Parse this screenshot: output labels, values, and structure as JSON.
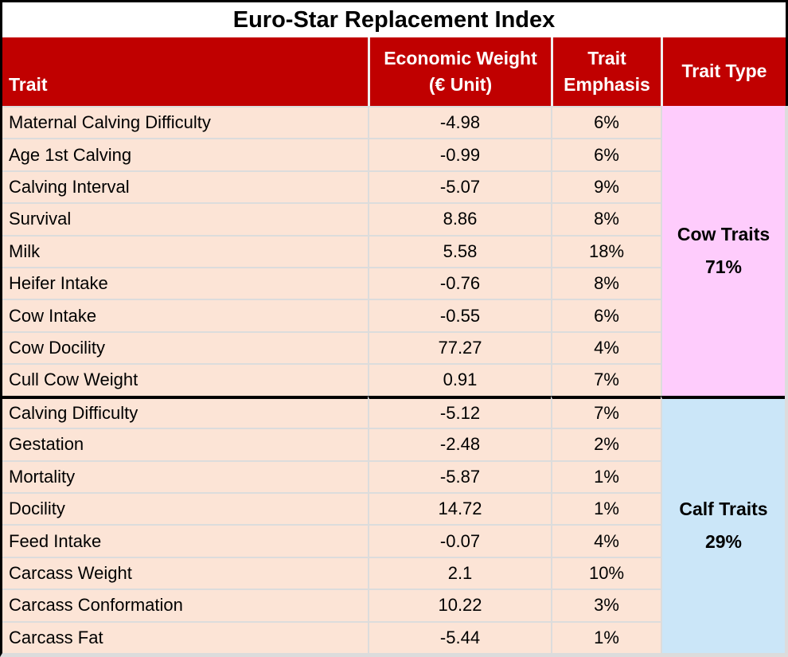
{
  "title": "Euro-Star Replacement Index",
  "header": {
    "trait": "Trait",
    "weight_line1": "Economic Weight",
    "weight_line2": "(€ Unit)",
    "emphasis_line1": "Trait",
    "emphasis_line2": "Emphasis",
    "type": "Trait Type"
  },
  "chart_data": {
    "type": "table",
    "title": "Euro-Star Replacement Index",
    "columns": [
      "Trait",
      "Economic Weight (€ Unit)",
      "Trait Emphasis",
      "Trait Type"
    ],
    "rows": [
      {
        "trait": "Maternal Calving Difficulty",
        "weight": "-4.98",
        "emphasis": "6%",
        "group": "Cow Traits"
      },
      {
        "trait": "Age 1st Calving",
        "weight": "-0.99",
        "emphasis": "6%",
        "group": "Cow Traits"
      },
      {
        "trait": "Calving Interval",
        "weight": "-5.07",
        "emphasis": "9%",
        "group": "Cow Traits"
      },
      {
        "trait": "Survival",
        "weight": "8.86",
        "emphasis": "8%",
        "group": "Cow Traits"
      },
      {
        "trait": "Milk",
        "weight": "5.58",
        "emphasis": "18%",
        "group": "Cow Traits"
      },
      {
        "trait": "Heifer Intake",
        "weight": "-0.76",
        "emphasis": "8%",
        "group": "Cow Traits"
      },
      {
        "trait": "Cow Intake",
        "weight": "-0.55",
        "emphasis": "6%",
        "group": "Cow Traits"
      },
      {
        "trait": "Cow Docility",
        "weight": "77.27",
        "emphasis": "4%",
        "group": "Cow Traits"
      },
      {
        "trait": "Cull Cow Weight",
        "weight": "0.91",
        "emphasis": "7%",
        "group": "Cow Traits"
      },
      {
        "trait": "Calving Difficulty",
        "weight": "-5.12",
        "emphasis": "7%",
        "group": "Calf Traits"
      },
      {
        "trait": "Gestation",
        "weight": "-2.48",
        "emphasis": "2%",
        "group": "Calf Traits"
      },
      {
        "trait": "Mortality",
        "weight": "-5.87",
        "emphasis": "1%",
        "group": "Calf Traits"
      },
      {
        "trait": "Docility",
        "weight": "14.72",
        "emphasis": "1%",
        "group": "Calf Traits"
      },
      {
        "trait": "Feed Intake",
        "weight": "-0.07",
        "emphasis": "4%",
        "group": "Calf Traits"
      },
      {
        "trait": "Carcass Weight",
        "weight": "2.1",
        "emphasis": "10%",
        "group": "Calf Traits"
      },
      {
        "trait": "Carcass Conformation",
        "weight": "10.22",
        "emphasis": "3%",
        "group": "Calf Traits"
      },
      {
        "trait": "Carcass Fat",
        "weight": "-5.44",
        "emphasis": "1%",
        "group": "Calf Traits"
      }
    ],
    "groups": [
      {
        "label": "Cow Traits",
        "percent": "71%",
        "row_count": 9,
        "bg": "#FECCFC"
      },
      {
        "label": "Calf Traits",
        "percent": "29%",
        "row_count": 8,
        "bg": "#CBE6F8"
      }
    ]
  },
  "colors": {
    "header_bg": "#C00000",
    "header_text": "#FFFFFF",
    "row_bg": "#FCE4D6",
    "cow_group_bg": "#FECCFC",
    "calf_group_bg": "#CBE6F8",
    "divider": "#000000",
    "gridline": "#DCDCDC",
    "title_text": "#000000"
  }
}
